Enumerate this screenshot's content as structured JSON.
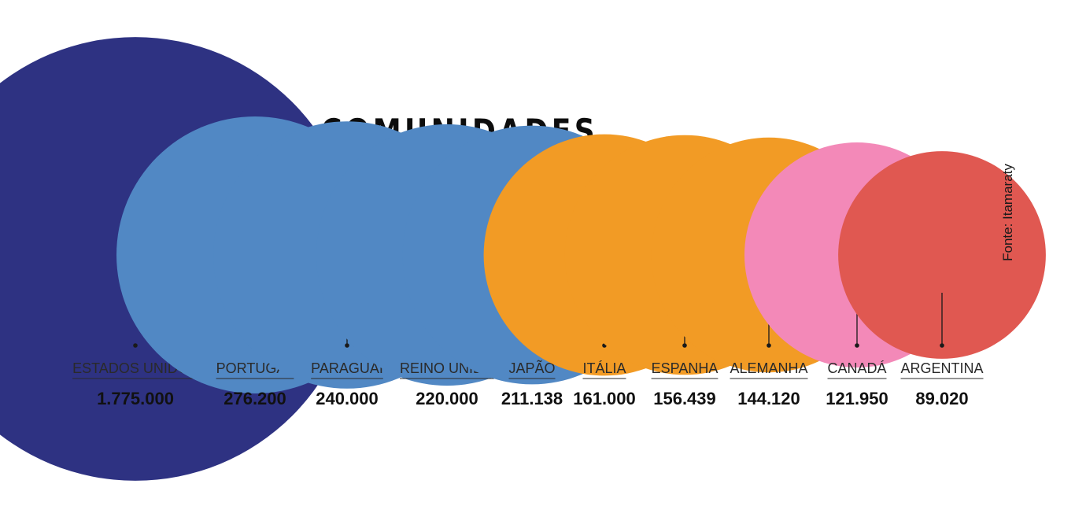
{
  "title": "AS MAIORES COMUNIDADES",
  "source": "Fonte: Itamaraty",
  "chart_data": {
    "type": "bubble",
    "title": "AS MAIORES COMUNIDADES",
    "source": "Fonte: Itamaraty",
    "categories": [
      "ESTADOS UNIDOS",
      "PORTUGAL",
      "PARAGUAI",
      "REINO UNIDO",
      "JAPÃO",
      "ITÁLIA",
      "ESPANHA",
      "ALEMANHA",
      "CANADÁ",
      "ARGENTINA"
    ],
    "values": [
      1775000,
      276200,
      240000,
      220000,
      211138,
      161000,
      156439,
      144120,
      121950,
      89020
    ],
    "value_labels": [
      "1.775.000",
      "276.200",
      "240.000",
      "220.000",
      "211.138",
      "161.000",
      "156.439",
      "144.120",
      "121.950",
      "89.020"
    ],
    "colors": [
      "#2e3282",
      "#5188c4",
      "#5188c4",
      "#5188c4",
      "#5188c4",
      "#f29b25",
      "#f29b25",
      "#f29b25",
      "#f389b8",
      "#e05851"
    ]
  }
}
